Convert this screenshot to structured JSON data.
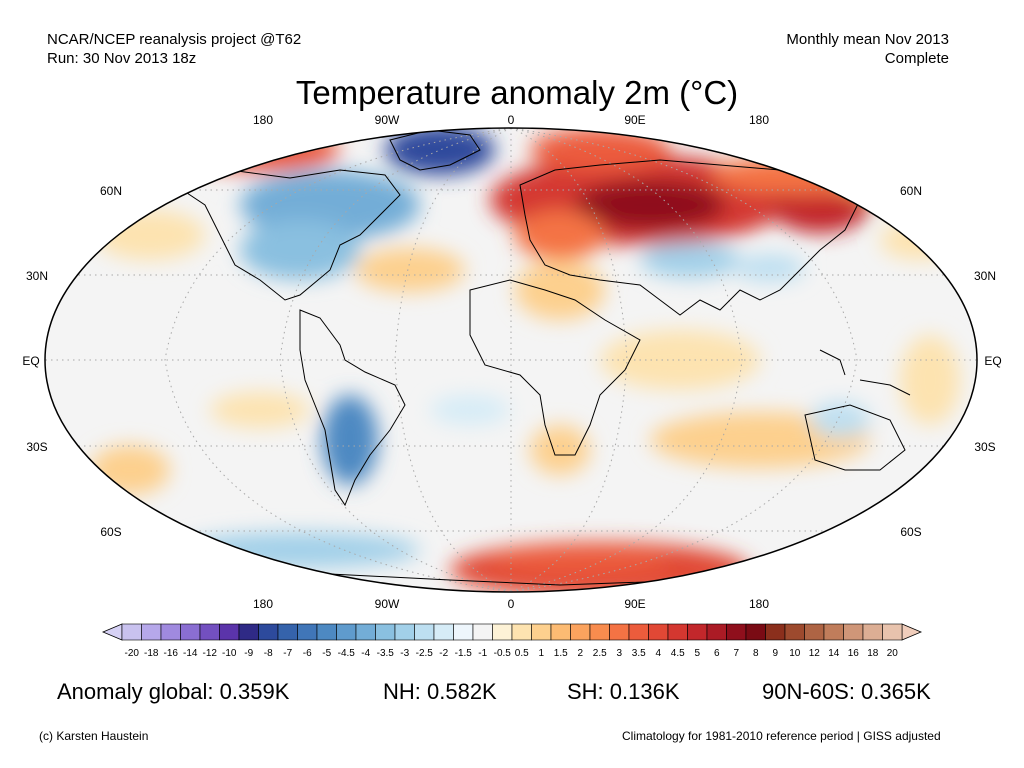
{
  "header": {
    "left_line1": "NCAR/NCEP reanalysis project @T62",
    "left_line2": "Run: 30 Nov 2013 18z",
    "right_line1": "Monthly mean Nov 2013",
    "right_line2": "Complete"
  },
  "title": "Temperature anomaly 2m (°C)",
  "lon_labels": [
    "180",
    "90W",
    "0",
    "90E",
    "180"
  ],
  "lat_labels": [
    "60N",
    "30N",
    "EQ",
    "30S",
    "60S"
  ],
  "colorbar": {
    "ticks": [
      "-20",
      "-18",
      "-16",
      "-14",
      "-12",
      "-10",
      "-9",
      "-8",
      "-7",
      "-6",
      "-5",
      "-4.5",
      "-4",
      "-3.5",
      "-3",
      "-2.5",
      "-2",
      "-1.5",
      "-1",
      "-0.5",
      "0.5",
      "1",
      "1.5",
      "2",
      "2.5",
      "3",
      "3.5",
      "4",
      "4.5",
      "5",
      "6",
      "7",
      "8",
      "9",
      "10",
      "12",
      "14",
      "16",
      "18",
      "20"
    ],
    "colors": [
      "#c9c2ef",
      "#b6a8ea",
      "#a08adf",
      "#8a6ed2",
      "#7350c0",
      "#5b34aa",
      "#2f2a86",
      "#2d4a9c",
      "#3563ab",
      "#4076b8",
      "#4d89c2",
      "#5f9bcd",
      "#73add7",
      "#8ac0e0",
      "#a2d0e9",
      "#bddff1",
      "#d6ecf7",
      "#eef6fc",
      "#f4f4f4",
      "#fdf2d6",
      "#fde3b0",
      "#fdd08e",
      "#fcbb73",
      "#fba35e",
      "#f88c4e",
      "#f47344",
      "#ec5c3c",
      "#e14835",
      "#d43730",
      "#c2272b",
      "#ab1b25",
      "#8f0f1c",
      "#7a0b14",
      "#8b2f1c",
      "#9d4a2e",
      "#ae6444",
      "#c07d5b",
      "#cf9678",
      "#dcae94",
      "#e8c3ad"
    ],
    "left_end_color": "#d6d1f5",
    "right_end_color": "#f0cdbb"
  },
  "stats": {
    "global": "Anomaly global: 0.359K",
    "nh": "NH: 0.582K",
    "sh": "SH: 0.136K",
    "arctic": "90N-60S: 0.365K"
  },
  "footer": {
    "left": "(c) Karsten Haustein",
    "right": "Climatology for 1981-2010 reference period | GISS adjusted"
  }
}
